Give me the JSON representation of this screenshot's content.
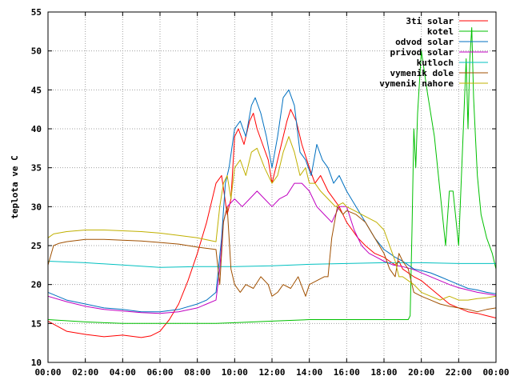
{
  "chart_data": {
    "type": "line",
    "ylabel": "teplota ve C",
    "xlabel": "",
    "xlim": [
      0,
      24
    ],
    "ylim": [
      10,
      55
    ],
    "grid": true,
    "legend_position": "top-right",
    "x_ticks": [
      "00:00",
      "02:00",
      "04:00",
      "06:00",
      "08:00",
      "10:00",
      "12:00",
      "14:00",
      "16:00",
      "18:00",
      "20:00",
      "22:00",
      "00:00"
    ],
    "y_ticks": [
      "10",
      "15",
      "20",
      "25",
      "30",
      "35",
      "40",
      "45",
      "50",
      "55"
    ],
    "series": [
      {
        "name": "3ti solar",
        "color": "#ff0000",
        "x": [
          0,
          1,
          2,
          3,
          4,
          5,
          5.5,
          6,
          6.5,
          7,
          7.5,
          8,
          8.5,
          9,
          9.3,
          9.6,
          9.8,
          10,
          10.2,
          10.5,
          10.8,
          11,
          11.2,
          11.5,
          11.8,
          12,
          12.2,
          12.5,
          12.8,
          13,
          13.3,
          13.6,
          14,
          14.3,
          14.6,
          15,
          15.3,
          15.6,
          16,
          16.3,
          16.6,
          17,
          17.5,
          18,
          18.3,
          18.6,
          18.8,
          19,
          19.3,
          19.6,
          20,
          20.5,
          21,
          21.5,
          22,
          22.5,
          23,
          23.5,
          24
        ],
        "y": [
          15.3,
          14,
          13.6,
          13.3,
          13.5,
          13.2,
          13.4,
          14,
          15.5,
          17.5,
          20.5,
          24,
          28,
          33,
          34,
          29,
          31,
          39,
          40,
          38,
          41,
          42,
          40,
          38,
          36,
          33,
          35,
          38,
          41,
          42.5,
          41,
          38,
          35,
          33,
          34,
          32,
          31,
          30,
          28,
          27,
          26,
          25,
          24,
          23.5,
          23,
          22.5,
          23,
          22,
          21.5,
          21,
          20.5,
          19.5,
          18.5,
          17.5,
          17,
          16.5,
          16.3,
          16,
          15.7
        ]
      },
      {
        "name": "kotel",
        "color": "#00c000",
        "x": [
          0,
          2,
          4,
          6,
          8,
          9,
          10,
          12,
          14,
          16,
          18,
          19,
          19.3,
          19.4,
          19.5,
          19.6,
          19.7,
          19.8,
          20,
          20.3,
          20.7,
          21,
          21.3,
          21.5,
          21.7,
          22,
          22.2,
          22.4,
          22.5,
          22.6,
          22.7,
          22.8,
          22.9,
          23,
          23.2,
          23.5,
          23.8,
          24
        ],
        "y": [
          15.5,
          15.2,
          15,
          15,
          15,
          15,
          15.1,
          15.3,
          15.5,
          15.5,
          15.5,
          15.5,
          15.5,
          16,
          27,
          40,
          35,
          42,
          50,
          45,
          39,
          32,
          25,
          32,
          32,
          25,
          37,
          49,
          40,
          49,
          53,
          44,
          39,
          34,
          29,
          26,
          24,
          22
        ]
      },
      {
        "name": "odvod solar",
        "color": "#0070c0",
        "x": [
          0,
          1,
          2,
          3,
          4,
          5,
          6,
          7,
          8,
          8.5,
          9,
          9.3,
          9.5,
          9.7,
          10,
          10.3,
          10.6,
          10.9,
          11.1,
          11.4,
          11.7,
          12,
          12.3,
          12.6,
          12.9,
          13.2,
          13.5,
          13.8,
          14.1,
          14.4,
          14.7,
          15,
          15.3,
          15.6,
          16,
          16.5,
          17,
          17.5,
          18,
          18.3,
          18.6,
          19,
          19.3,
          19.6,
          20,
          20.5,
          21,
          21.5,
          22,
          22.5,
          23,
          23.5,
          24
        ],
        "y": [
          19,
          18,
          17.5,
          17,
          16.8,
          16.5,
          16.5,
          16.8,
          17.5,
          18,
          19,
          26,
          33,
          35,
          40,
          41,
          39,
          43,
          44,
          42,
          39,
          35,
          39,
          44,
          45,
          43,
          37,
          36,
          34,
          38,
          36,
          35,
          33,
          34,
          32,
          30,
          28,
          26,
          24.5,
          24,
          23.5,
          23,
          22.5,
          22,
          21.8,
          21.5,
          21,
          20.5,
          20,
          19.5,
          19.3,
          19,
          18.8
        ]
      },
      {
        "name": "privod solar",
        "color": "#c000c0",
        "x": [
          0,
          1,
          2,
          3,
          4,
          5,
          6,
          7,
          8,
          8.5,
          9,
          9.2,
          9.4,
          9.6,
          10,
          10.4,
          10.8,
          11.2,
          11.6,
          12,
          12.4,
          12.8,
          13.2,
          13.6,
          14,
          14.4,
          14.8,
          15.2,
          15.6,
          16,
          16.4,
          16.8,
          17.2,
          17.6,
          18,
          18.5,
          19,
          19.5,
          20,
          20.5,
          21,
          21.5,
          22,
          22.5,
          23,
          23.5,
          24
        ],
        "y": [
          18.5,
          17.8,
          17.2,
          16.8,
          16.6,
          16.4,
          16.3,
          16.5,
          17,
          17.5,
          18,
          22,
          28,
          30,
          31,
          30,
          31,
          32,
          31,
          30,
          31,
          31.5,
          33,
          33,
          32,
          30,
          29,
          28,
          30,
          30,
          27,
          25,
          24,
          23.5,
          23,
          22.5,
          22.3,
          22,
          21.5,
          21,
          20.5,
          20,
          19.6,
          19.3,
          19,
          18.8,
          18.6
        ]
      },
      {
        "name": "kutloch",
        "color": "#00c0c0",
        "x": [
          0,
          2,
          4,
          6,
          8,
          10,
          12,
          14,
          16,
          18,
          20,
          22,
          24
        ],
        "y": [
          23,
          22.8,
          22.5,
          22.2,
          22.3,
          22.3,
          22.4,
          22.6,
          22.7,
          22.8,
          22.8,
          22.7,
          22.7
        ]
      },
      {
        "name": "vymenik dole",
        "color": "#a05000",
        "x": [
          0,
          0.3,
          0.6,
          1,
          2,
          3,
          4,
          5,
          6,
          7,
          8,
          9,
          9.2,
          9.4,
          9.6,
          9.8,
          10,
          10.3,
          10.6,
          11,
          11.4,
          11.8,
          12,
          12.3,
          12.6,
          13,
          13.4,
          13.8,
          14,
          14.4,
          14.8,
          15,
          15.2,
          15.5,
          15.8,
          16,
          16.5,
          17,
          17.5,
          18,
          18.3,
          18.6,
          18.8,
          19,
          19.3,
          19.6,
          20,
          20.5,
          21,
          21.5,
          22,
          22.5,
          23,
          23.5,
          24
        ],
        "y": [
          22.5,
          25,
          25.3,
          25.5,
          25.8,
          25.8,
          25.7,
          25.6,
          25.4,
          25.2,
          24.8,
          24.5,
          20,
          28,
          30,
          22,
          20,
          19,
          20,
          19.5,
          21,
          20,
          18.5,
          19,
          20,
          19.5,
          21,
          18.5,
          20,
          20.5,
          21,
          21,
          26,
          30,
          29,
          29.5,
          29,
          28,
          26,
          24,
          22,
          21,
          24,
          23,
          22,
          19,
          18.5,
          18,
          17.5,
          17.2,
          17,
          16.8,
          16.5,
          16.8,
          17
        ]
      },
      {
        "name": "vymenik nahore",
        "color": "#c0b000",
        "x": [
          0,
          0.3,
          1,
          2,
          3,
          4,
          5,
          6,
          7,
          8,
          9,
          9.2,
          9.4,
          9.6,
          9.8,
          10,
          10.3,
          10.6,
          10.9,
          11.2,
          11.6,
          12,
          12.3,
          12.6,
          12.9,
          13.2,
          13.5,
          13.8,
          14,
          14.3,
          14.6,
          15,
          15.4,
          15.8,
          16,
          16.4,
          16.8,
          17.2,
          17.6,
          18,
          18.3,
          18.6,
          18.8,
          19,
          19.3,
          19.6,
          20,
          20.5,
          21,
          21.5,
          22,
          22.5,
          23,
          23.5,
          24
        ],
        "y": [
          26,
          26.5,
          26.8,
          27,
          27,
          26.9,
          26.8,
          26.6,
          26.3,
          26,
          25.5,
          30,
          33,
          34,
          31,
          35,
          36,
          34,
          37,
          37.5,
          35,
          33,
          34,
          37,
          39,
          37,
          34,
          35,
          33,
          33,
          32,
          31,
          30,
          30.5,
          30,
          29.5,
          29,
          28.5,
          28,
          27,
          25,
          23,
          21,
          21,
          20.5,
          20,
          19,
          18.5,
          18,
          18.5,
          18,
          18,
          18.2,
          18.3,
          18.5
        ]
      }
    ]
  }
}
